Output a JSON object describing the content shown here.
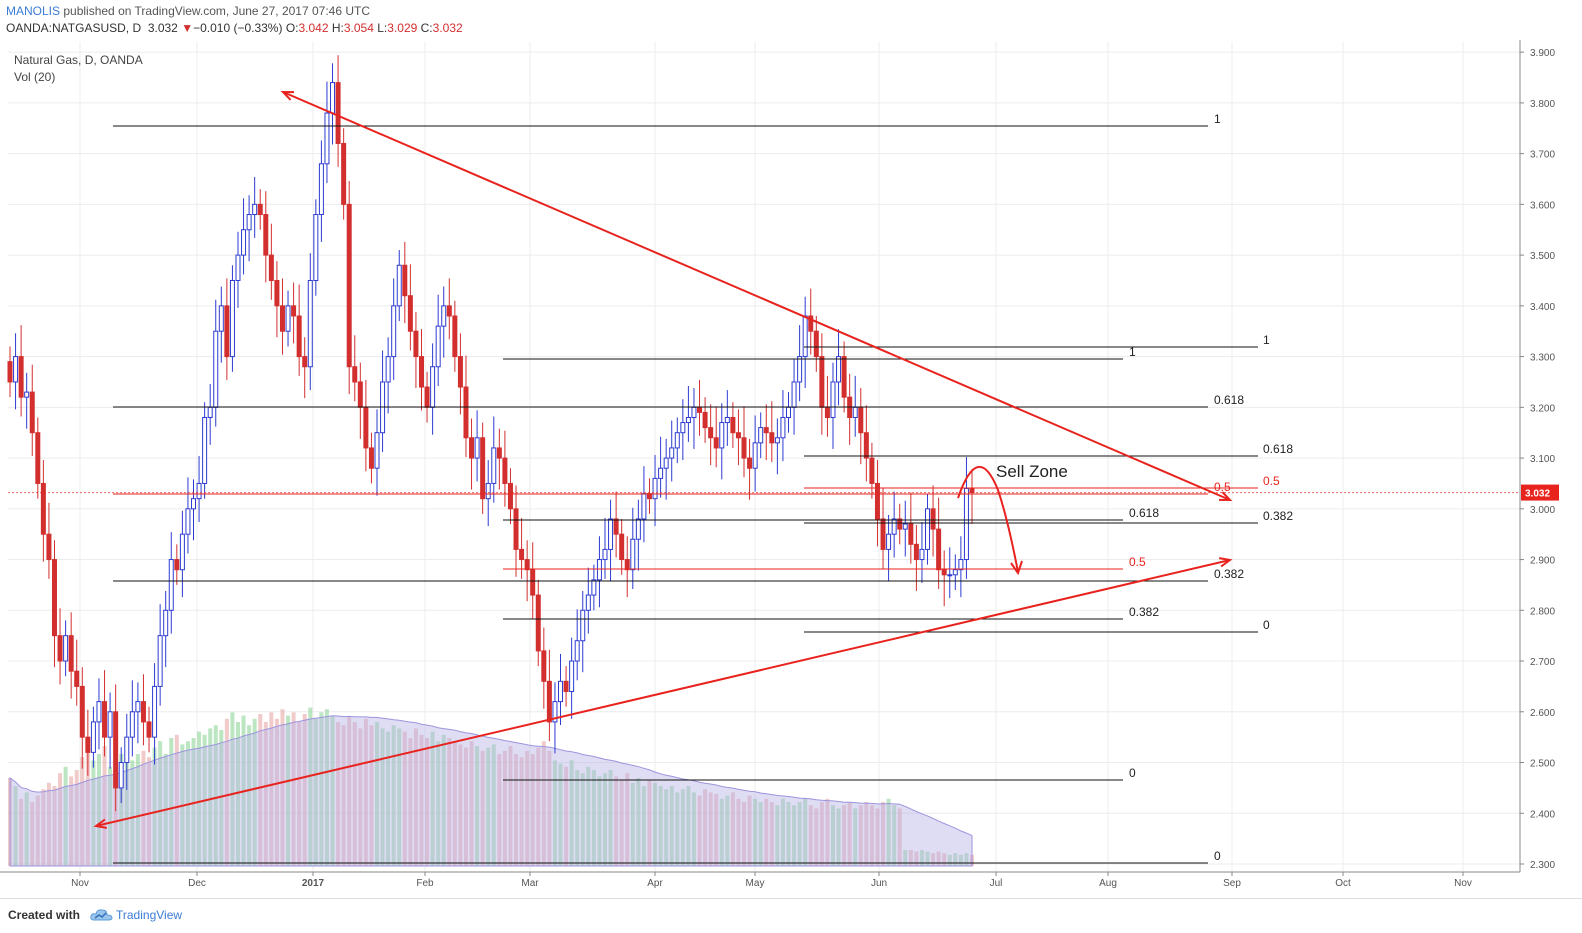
{
  "header": {
    "author": "MANOLIS",
    "published": "published on TradingView.com, June 27, 2017 07:46 UTC",
    "symbol": "OANDA:NATGASUSD, D",
    "last": "3.032",
    "change": "−0.010 (−0.33%)",
    "open_label": "O:",
    "open": "3.042",
    "high_label": "H:",
    "high": "3.054",
    "low_label": "L:",
    "low": "3.029",
    "close_label": "C:",
    "close": "3.032"
  },
  "footer": {
    "made_with": "Created with",
    "brand": "TradingView"
  },
  "colors": {
    "up": "#2d3bd1",
    "down": "#d32f2f",
    "trend": "#e8231e",
    "fib": "#111111",
    "grid": "#ececec",
    "vol_up": "#8fd39a",
    "vol_down": "#e8a6a6",
    "vol_ma": "#b9b3e6"
  },
  "chart_data": {
    "type": "candlestick",
    "title": "Natural Gas, D, OANDA",
    "volume_label": "Vol (20)",
    "x_labels": [
      "Nov",
      "Dec",
      "2017",
      "Feb",
      "Mar",
      "Apr",
      "May",
      "Jun",
      "Jul",
      "Aug",
      "Sep",
      "Oct",
      "Nov"
    ],
    "y_ticks": [
      "3.900",
      "3.800",
      "3.700",
      "3.600",
      "3.500",
      "3.400",
      "3.300",
      "3.200",
      "3.100",
      "3.000",
      "2.900",
      "2.800",
      "2.700",
      "2.600",
      "2.500",
      "2.400",
      "2.300"
    ],
    "ylim": [
      2.3,
      3.92
    ],
    "last_price": "3.032",
    "close_series": [
      3.25,
      3.3,
      3.22,
      3.23,
      3.15,
      3.05,
      2.95,
      2.9,
      2.75,
      2.7,
      2.75,
      2.68,
      2.65,
      2.55,
      2.52,
      2.58,
      2.62,
      2.55,
      2.6,
      2.45,
      2.5,
      2.55,
      2.6,
      2.62,
      2.58,
      2.55,
      2.65,
      2.75,
      2.8,
      2.9,
      2.88,
      2.95,
      3.0,
      3.02,
      3.05,
      3.18,
      3.2,
      3.35,
      3.4,
      3.3,
      3.45,
      3.5,
      3.55,
      3.58,
      3.6,
      3.58,
      3.5,
      3.45,
      3.4,
      3.35,
      3.4,
      3.38,
      3.3,
      3.28,
      3.45,
      3.58,
      3.68,
      3.78,
      3.84,
      3.72,
      3.6,
      3.28,
      3.25,
      3.2,
      3.12,
      3.08,
      3.15,
      3.25,
      3.3,
      3.4,
      3.48,
      3.42,
      3.35,
      3.3,
      3.24,
      3.2,
      3.28,
      3.36,
      3.4,
      3.38,
      3.3,
      3.24,
      3.14,
      3.1,
      3.14,
      3.02,
      3.05,
      3.12,
      3.1,
      3.05,
      3.0,
      2.92,
      2.9,
      2.88,
      2.83,
      2.72,
      2.66,
      2.58,
      2.62,
      2.66,
      2.64,
      2.7,
      2.74,
      2.8,
      2.83,
      2.86,
      2.9,
      2.92,
      2.98,
      2.95,
      2.9,
      2.88,
      2.94,
      2.98,
      3.03,
      3.02,
      3.06,
      3.08,
      3.1,
      3.12,
      3.15,
      3.17,
      3.18,
      3.2,
      3.19,
      3.16,
      3.14,
      3.12,
      3.17,
      3.18,
      3.15,
      3.14,
      3.1,
      3.08,
      3.13,
      3.16,
      3.15,
      3.13,
      3.14,
      3.18,
      3.2,
      3.25,
      3.3,
      3.38,
      3.35,
      3.3,
      3.2,
      3.18,
      3.25,
      3.3,
      3.22,
      3.18,
      3.2,
      3.15,
      3.1,
      3.05,
      2.98,
      2.92,
      2.95,
      2.98,
      2.96,
      2.97,
      2.93,
      2.9,
      2.92,
      3.0,
      2.96,
      2.88,
      2.87,
      2.87,
      2.88,
      2.9,
      3.04,
      3.032
    ],
    "volume_series": [
      0.55,
      0.5,
      0.42,
      0.46,
      0.4,
      0.44,
      0.48,
      0.52,
      0.5,
      0.58,
      0.62,
      0.56,
      0.6,
      0.68,
      0.72,
      0.66,
      0.7,
      0.75,
      0.62,
      0.74,
      0.7,
      0.78,
      0.66,
      0.7,
      0.72,
      0.68,
      0.74,
      0.78,
      0.7,
      0.8,
      0.82,
      0.76,
      0.78,
      0.8,
      0.84,
      0.82,
      0.86,
      0.88,
      0.85,
      0.92,
      0.96,
      0.9,
      0.94,
      0.88,
      0.92,
      0.95,
      0.9,
      0.96,
      0.92,
      0.98,
      0.94,
      0.96,
      0.9,
      0.95,
      0.99,
      0.92,
      0.96,
      0.98,
      0.94,
      0.9,
      0.88,
      0.93,
      0.9,
      0.86,
      0.92,
      0.88,
      0.9,
      0.86,
      0.84,
      0.88,
      0.86,
      0.84,
      0.8,
      0.86,
      0.82,
      0.8,
      0.84,
      0.78,
      0.82,
      0.8,
      0.78,
      0.76,
      0.74,
      0.78,
      0.75,
      0.72,
      0.74,
      0.76,
      0.7,
      0.72,
      0.75,
      0.7,
      0.68,
      0.72,
      0.7,
      0.74,
      0.78,
      0.72,
      0.66,
      0.64,
      0.62,
      0.66,
      0.6,
      0.58,
      0.62,
      0.6,
      0.56,
      0.58,
      0.6,
      0.56,
      0.54,
      0.58,
      0.52,
      0.55,
      0.5,
      0.54,
      0.52,
      0.5,
      0.48,
      0.5,
      0.46,
      0.48,
      0.5,
      0.46,
      0.44,
      0.48,
      0.46,
      0.45,
      0.42,
      0.44,
      0.46,
      0.42,
      0.4,
      0.44,
      0.42,
      0.4,
      0.42,
      0.4,
      0.38,
      0.42,
      0.4,
      0.38,
      0.4,
      0.42,
      0.38,
      0.36,
      0.4,
      0.42,
      0.38,
      0.36,
      0.38,
      0.4,
      0.36,
      0.38,
      0.4,
      0.38,
      0.36,
      0.4,
      0.42,
      0.38,
      0.36,
      0.1,
      0.1,
      0.09,
      0.1,
      0.09,
      0.08,
      0.09,
      0.08,
      0.07,
      0.08,
      0.07,
      0.08,
      0.07
    ],
    "fib_levels": [
      {
        "label": "1"
      },
      {
        "label": "0.618"
      },
      {
        "label": "0.5"
      },
      {
        "label": "0.382"
      },
      {
        "label": "0"
      }
    ],
    "annotations": [
      "Sell Zone"
    ]
  }
}
